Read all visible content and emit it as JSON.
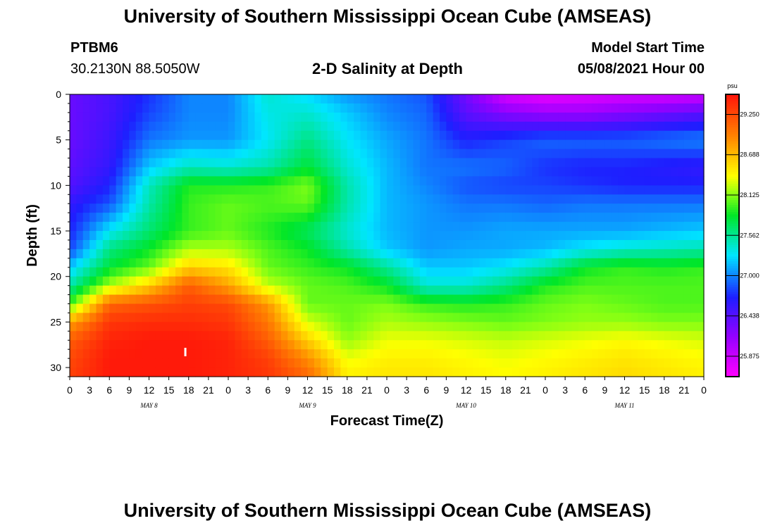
{
  "page": {
    "title_top": "University of Southern Mississippi Ocean Cube (AMSEAS)",
    "title_bottom": "University of Southern Mississippi Ocean Cube (AMSEAS)",
    "station_id": "PTBM6",
    "station_coords": "30.2130N  88.5050W",
    "plot_title": "2-D Salinity at Depth",
    "model_start_label": "Model Start Time",
    "model_start_value": "05/08/2021 Hour 00"
  },
  "chart_data": {
    "type": "heatmap",
    "title": "2-D Salinity at Depth",
    "xlabel": "Forecast Time(Z)",
    "ylabel": "Depth (ft)",
    "x_hours_range": [
      0,
      96
    ],
    "x_tick_step_hours": 3,
    "x_tick_labels": [
      "0",
      "3",
      "6",
      "9",
      "12",
      "15",
      "18",
      "21",
      "0",
      "3",
      "6",
      "9",
      "12",
      "15",
      "18",
      "21",
      "0",
      "3",
      "6",
      "9",
      "12",
      "15",
      "18",
      "21",
      "0",
      "3",
      "6",
      "9",
      "12",
      "15",
      "18",
      "21",
      "0"
    ],
    "day_labels": [
      {
        "label": "MAY 8",
        "hour": 12
      },
      {
        "label": "MAY 9",
        "hour": 36
      },
      {
        "label": "MAY 10",
        "hour": 60
      },
      {
        "label": "MAY 11",
        "hour": 84
      }
    ],
    "y_range_ft": [
      0,
      31
    ],
    "y_ticks": [
      0,
      5,
      10,
      15,
      20,
      25,
      30
    ],
    "y_tick_labels": [
      "0",
      "5",
      "10",
      "15",
      "20",
      "25",
      "30"
    ],
    "colorbar": {
      "unit": "psu",
      "min": 25.59,
      "max": 29.53,
      "tick_values": [
        25.875,
        26.438,
        27.0,
        27.562,
        28.125,
        28.688,
        29.25
      ],
      "tick_labels": [
        "25.875",
        "26.438",
        "27.000",
        "27.562",
        "28.125",
        "28.688",
        "29.250"
      ]
    },
    "grid_depths_ft": [
      0,
      2,
      5,
      8,
      10,
      12,
      15,
      17,
      19,
      21,
      23,
      25,
      27,
      29,
      31
    ],
    "grid_hours": [
      0,
      6,
      12,
      18,
      24,
      30,
      36,
      42,
      48,
      54,
      60,
      66,
      72,
      78,
      84,
      90,
      96
    ],
    "salinity_psu": [
      [
        26.35,
        26.5,
        26.75,
        27.0,
        27.0,
        27.4,
        27.25,
        27.05,
        26.95,
        26.85,
        26.3,
        25.8,
        25.7,
        25.75,
        25.8,
        25.8,
        25.85
      ],
      [
        26.35,
        26.5,
        26.8,
        27.0,
        27.0,
        27.35,
        27.4,
        27.2,
        27.0,
        26.9,
        26.4,
        26.2,
        26.1,
        26.1,
        26.2,
        26.3,
        26.4
      ],
      [
        26.35,
        26.55,
        26.95,
        27.05,
        27.05,
        27.3,
        27.6,
        27.3,
        27.1,
        26.95,
        26.7,
        26.8,
        26.9,
        26.9,
        26.9,
        26.95,
        27.0
      ],
      [
        26.4,
        26.6,
        27.2,
        27.45,
        27.4,
        27.5,
        27.8,
        27.4,
        27.15,
        26.95,
        26.95,
        26.9,
        26.75,
        26.7,
        26.7,
        26.65,
        26.6
      ],
      [
        26.45,
        26.7,
        27.45,
        27.9,
        27.9,
        27.95,
        28.1,
        27.5,
        27.15,
        27.0,
        26.85,
        26.8,
        26.8,
        26.75,
        26.7,
        26.7,
        26.7
      ],
      [
        26.6,
        26.85,
        27.5,
        27.95,
        28.05,
        28.0,
        28.05,
        27.5,
        27.15,
        27.05,
        26.95,
        26.95,
        26.9,
        26.95,
        26.95,
        26.95,
        26.95
      ],
      [
        26.7,
        27.3,
        27.65,
        27.95,
        28.05,
        27.9,
        27.7,
        27.4,
        27.15,
        27.05,
        27.05,
        27.1,
        27.1,
        27.1,
        27.1,
        27.15,
        27.2
      ],
      [
        26.8,
        27.6,
        27.85,
        28.2,
        28.2,
        28.0,
        27.85,
        27.5,
        27.2,
        27.05,
        27.1,
        27.1,
        27.15,
        27.3,
        27.4,
        27.45,
        27.5
      ],
      [
        27.2,
        27.8,
        28.05,
        28.6,
        28.5,
        28.05,
        27.95,
        27.85,
        27.55,
        27.2,
        27.2,
        27.3,
        27.5,
        27.85,
        27.95,
        27.9,
        27.95
      ],
      [
        27.5,
        28.2,
        28.6,
        29.15,
        28.8,
        28.25,
        28.05,
        28.0,
        27.85,
        27.4,
        27.4,
        27.6,
        27.9,
        28.0,
        28.0,
        28.0,
        28.0
      ],
      [
        27.95,
        29.1,
        29.2,
        29.3,
        29.25,
        28.85,
        28.05,
        28.05,
        28.1,
        27.95,
        27.9,
        27.95,
        28.05,
        28.1,
        28.05,
        28.0,
        28.0
      ],
      [
        28.8,
        29.35,
        29.4,
        29.4,
        29.35,
        29.0,
        28.3,
        28.05,
        28.2,
        28.15,
        28.1,
        28.05,
        28.1,
        28.15,
        28.15,
        28.1,
        28.1
      ],
      [
        29.15,
        29.45,
        29.5,
        29.5,
        29.45,
        29.15,
        28.6,
        28.15,
        28.35,
        28.35,
        28.3,
        28.25,
        28.3,
        28.35,
        28.4,
        28.35,
        28.3
      ],
      [
        29.25,
        29.5,
        29.5,
        29.5,
        29.45,
        29.3,
        28.9,
        28.35,
        28.45,
        28.45,
        28.4,
        28.35,
        28.4,
        28.45,
        28.5,
        28.45,
        28.4
      ],
      [
        29.3,
        29.5,
        29.5,
        29.5,
        29.45,
        29.35,
        29.1,
        28.45,
        28.5,
        28.5,
        28.45,
        28.4,
        28.45,
        28.5,
        28.55,
        28.5,
        28.45
      ]
    ],
    "marker": {
      "hour": 17.5,
      "depth_ft": 28.3
    }
  }
}
